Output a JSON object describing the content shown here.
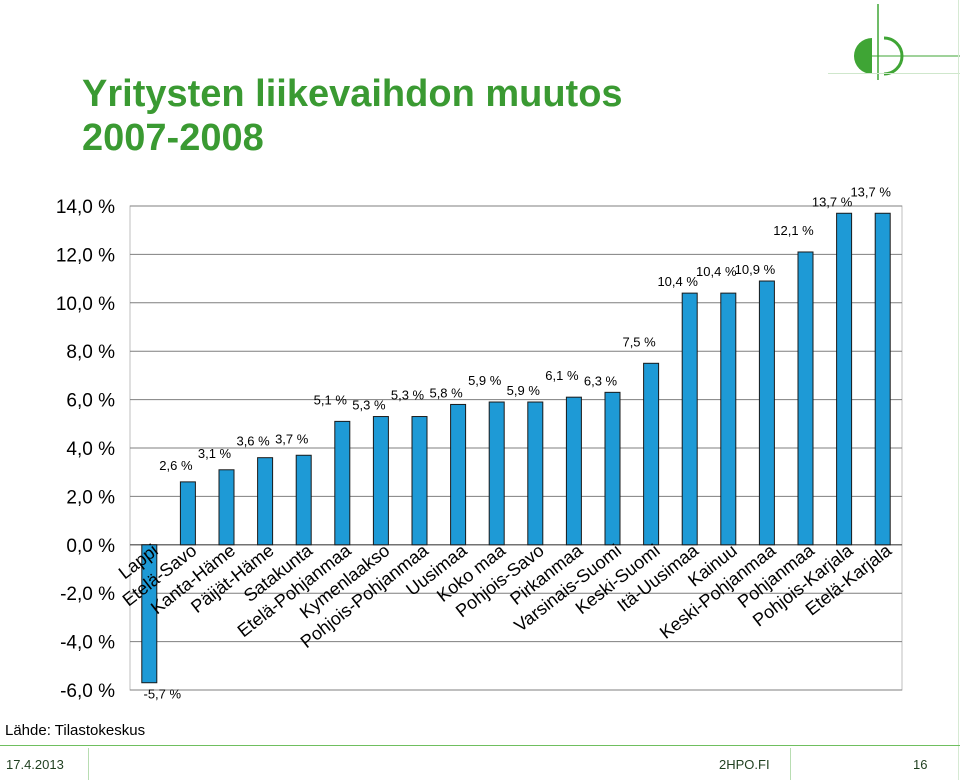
{
  "title": {
    "line1": "Yritysten liikevaihdon muutos",
    "line2": "2007-2008"
  },
  "source": "Lähde: Tilastokeskus",
  "footer": {
    "date": "17.4.2013",
    "site": "2HPO.FI",
    "page": "16"
  },
  "colors": {
    "title": "#3a9a32",
    "bar": "#1e9ad6",
    "bar_edge": "#1a1a1a",
    "footer_line": "#6fbf5f",
    "logo": "#3fa535"
  },
  "logo_icon": "half-circle-logo-icon",
  "chart_data": {
    "type": "bar",
    "categories": [
      "Lappi",
      "Etelä-Savo",
      "Kanta-Häme",
      "Päijät-Häme",
      "Satakunta",
      "Etelä-Pohjanmaa",
      "Kymenlaakso",
      "Pohjois-Pohjanmaa",
      "Uusimaa",
      "Koko maa",
      "Pohjois-Savo",
      "Pirkanmaa",
      "Varsinais-Suomi",
      "Keski-Suomi",
      "Itä-Uusimaa",
      "Kainuu",
      "Keski-Pohjanmaa",
      "Pohjanmaa",
      "Pohjois-Karjala",
      "Etelä-Karjala"
    ],
    "values": [
      -5.7,
      2.6,
      3.1,
      3.6,
      3.7,
      5.1,
      5.3,
      5.3,
      5.8,
      5.9,
      5.9,
      6.1,
      6.3,
      7.5,
      10.4,
      10.4,
      10.9,
      12.1,
      13.7,
      13.7
    ],
    "value_labels": [
      "-5,7 %",
      "2,6 %",
      "3,1 %",
      "3,6 %",
      "3,7 %",
      "5,1 %",
      "5,3 %",
      "5,3 %",
      "5,8 %",
      "5,9 %",
      "5,9 %",
      "6,1 %",
      "6,3 %",
      "7,5 %",
      "10,4 %",
      "10,4 %",
      "10,9 %",
      "12,1 %",
      "13,7 %",
      "13,7 %"
    ],
    "y_ticks": [
      14,
      12,
      10,
      8,
      6,
      4,
      2,
      0,
      -2,
      -4,
      -6
    ],
    "y_tick_labels": [
      "14,0 %",
      "12,0 %",
      "10,0 %",
      "8,0 %",
      "6,0 %",
      "4,0 %",
      "2,0 %",
      "0,0 %",
      "-2,0 %",
      "-4,0 %",
      "-6,0 %"
    ],
    "ylim": [
      -6,
      14
    ],
    "grid": true,
    "legend": "none",
    "title": "",
    "xlabel": "",
    "ylabel": ""
  }
}
